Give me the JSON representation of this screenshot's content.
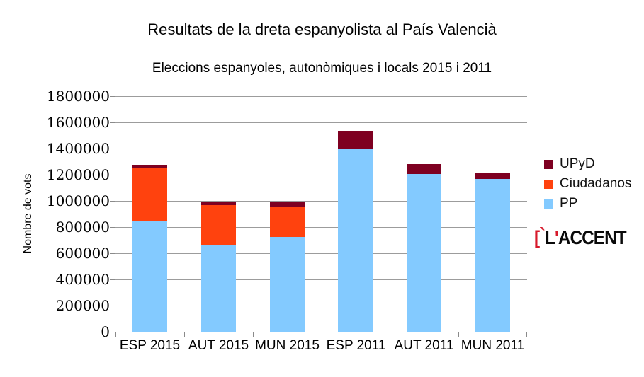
{
  "title": "Resultats de la dreta espanyolista al País Valencià",
  "subtitle": "Eleccions espanyoles, autonòmiques i locals 2015 i 2011",
  "chart_data": {
    "type": "bar",
    "stacked": true,
    "title": "Resultats de la dreta espanyolista al País Valencià",
    "subtitle": "Eleccions espanyoles, autonòmiques i locals 2015 i 2011",
    "xlabel": "",
    "ylabel": "Nombre de vots",
    "categories": [
      "ESP 2015",
      "AUT 2015",
      "MUN 2015",
      "ESP 2011",
      "AUT 2011",
      "MUN 2011"
    ],
    "series": [
      {
        "name": "PP",
        "color": "#83CAFF",
        "values": [
          843000,
          665000,
          724000,
          1393000,
          1205000,
          1165000
        ]
      },
      {
        "name": "Ciudadanos",
        "color": "#FF420E",
        "values": [
          413000,
          303000,
          226000,
          0,
          0,
          0
        ]
      },
      {
        "name": "UPyD",
        "color": "#7E0021",
        "values": [
          24000,
          27000,
          39000,
          142000,
          76000,
          45000
        ]
      }
    ],
    "ylim": [
      0,
      1800000
    ],
    "ytick_step": 200000,
    "grid": "horizontal",
    "legend_position": "right"
  },
  "legend": {
    "items": [
      {
        "label": "UPyD",
        "color": "#7E0021"
      },
      {
        "label": "Ciudadanos",
        "color": "#FF420E"
      },
      {
        "label": "PP",
        "color": "#83CAFF"
      }
    ]
  },
  "logo": {
    "bracket": "[",
    "grave": "`",
    "letter": "L",
    "apostrophe": "'",
    "rest": "ACCENT",
    "red_color": "#d7192b"
  },
  "colors": {
    "grid": "#9c9c9c",
    "axis": "#8a8a8a",
    "background": "#ffffff"
  }
}
